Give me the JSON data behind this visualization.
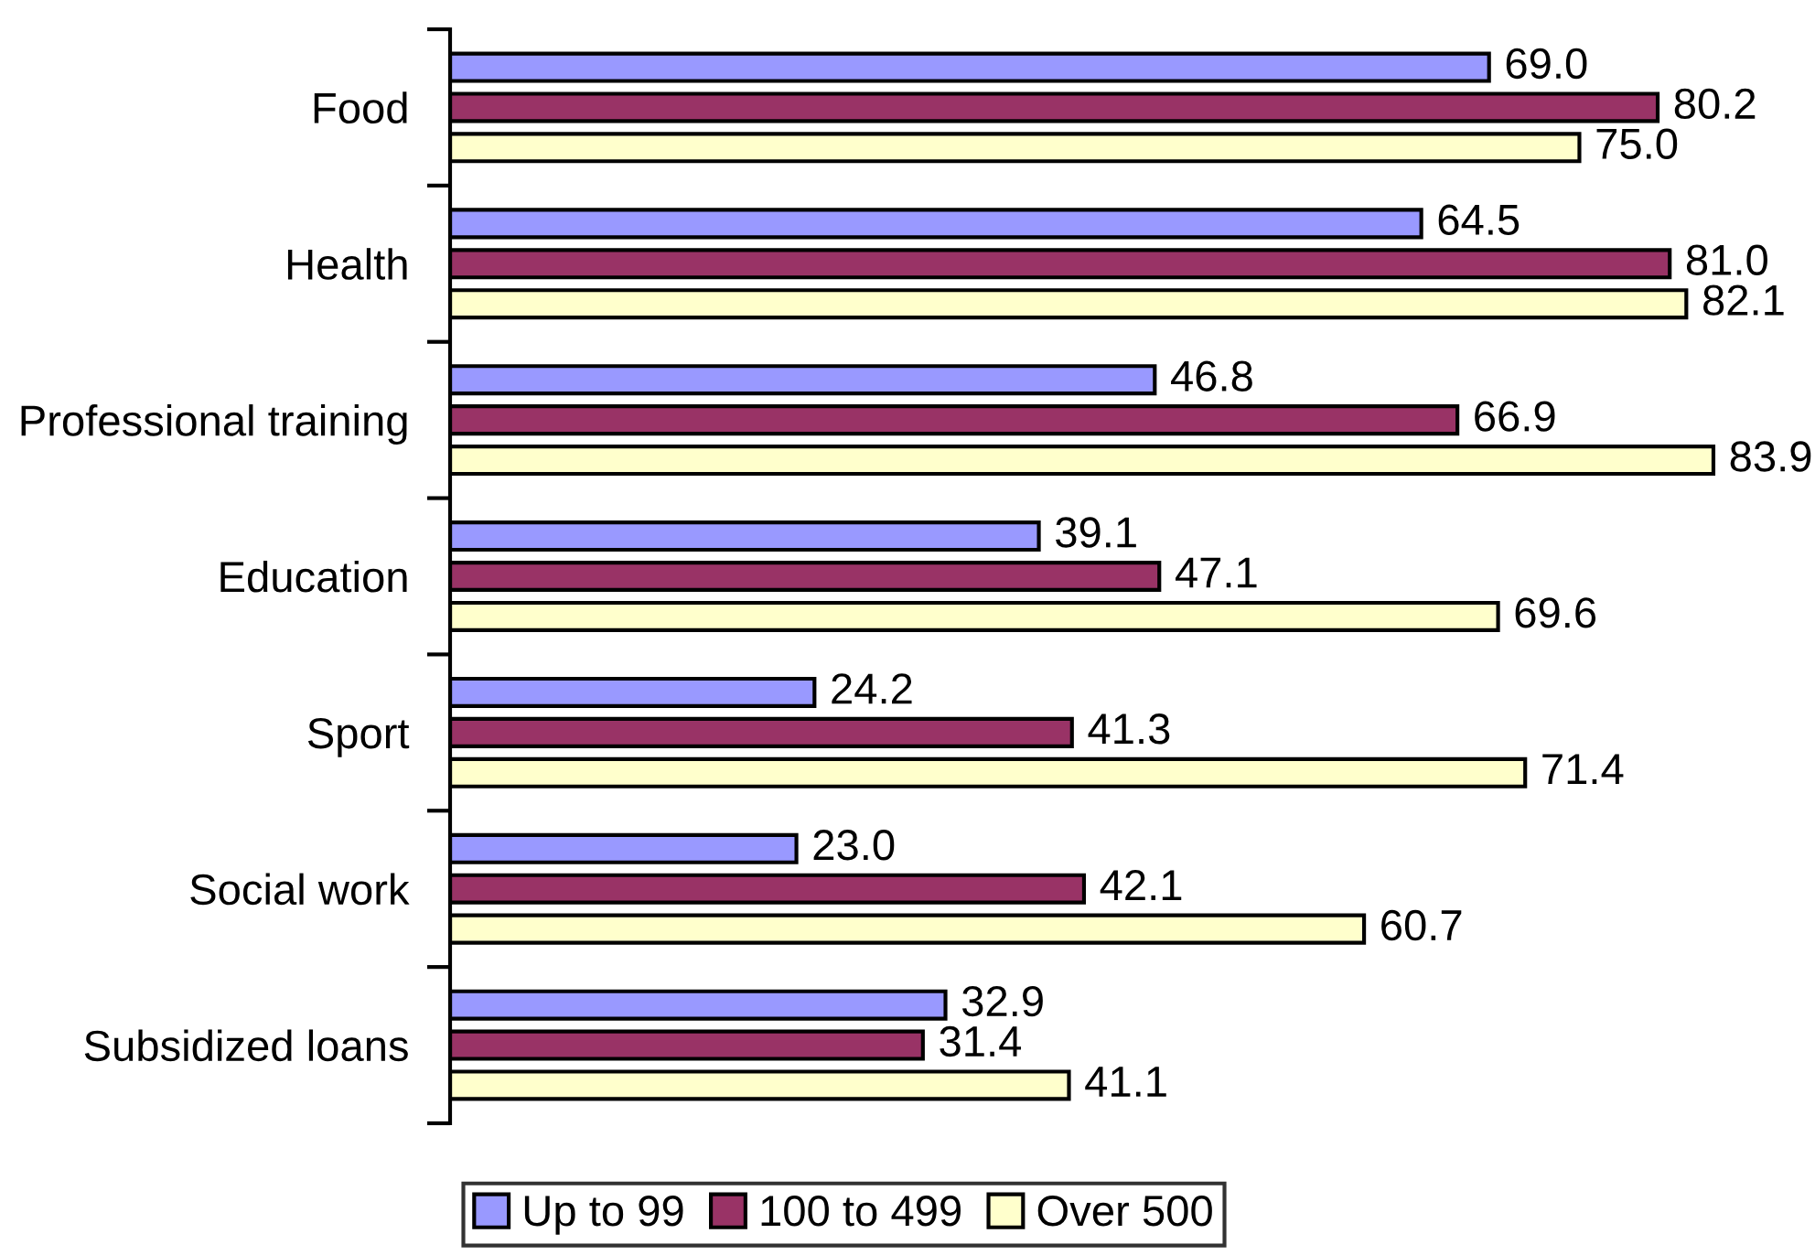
{
  "chart_data": {
    "type": "bar",
    "orientation": "horizontal",
    "categories": [
      "Food",
      "Health",
      "Professional training",
      "Education",
      "Sport",
      "Social work",
      "Subsidized loans"
    ],
    "series": [
      {
        "name": "Up to 99",
        "color": "#9999ff",
        "values": [
          69.0,
          64.5,
          46.8,
          39.1,
          24.2,
          23.0,
          32.9
        ],
        "value_labels": [
          "69.0",
          "64.5",
          "46.8",
          "39.1",
          "24.2",
          "23.0",
          "32.9"
        ]
      },
      {
        "name": "100 to 499",
        "color": "#993366",
        "values": [
          80.2,
          81.0,
          66.9,
          47.1,
          41.3,
          42.1,
          31.4
        ],
        "value_labels": [
          "80.2",
          "81.0",
          "66.9",
          "47.1",
          "41.3",
          "42.1",
          "31.4"
        ]
      },
      {
        "name": "Over 500",
        "color": "#ffffcc",
        "values": [
          75.0,
          82.1,
          83.9,
          69.6,
          71.4,
          60.7,
          41.1
        ],
        "value_labels": [
          "75.0",
          "82.1",
          "83.9",
          "69.6",
          "71.4",
          "60.7",
          "41.1"
        ]
      }
    ],
    "legend": "bottom",
    "grid": false
  }
}
